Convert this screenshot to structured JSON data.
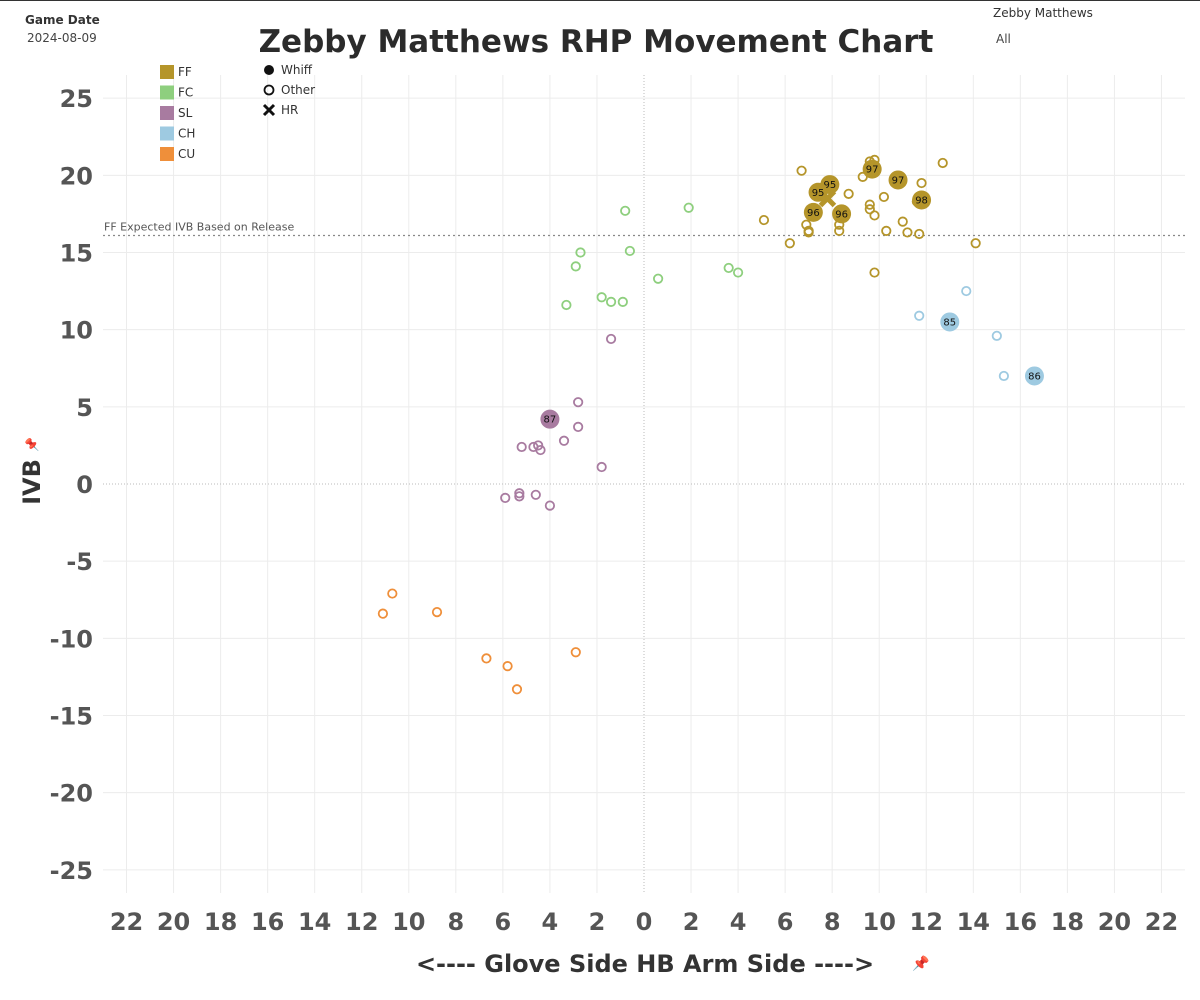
{
  "filters": {
    "game_date_label": "Game Date",
    "game_date_value": "2024-08-09",
    "pitcher_label": "Zebby Matthews",
    "pitcher_value": "All"
  },
  "colors": {
    "FF": "#b5952a",
    "FC": "#8ecf7e",
    "SL": "#a87ba0",
    "CH": "#9ecae1",
    "CU": "#ef8f3a"
  },
  "chart_data": {
    "type": "scatter",
    "title": "Zebby Matthews RHP Movement Chart",
    "xlabel": "<---- Glove Side        HB        Arm Side ---->",
    "ylabel": "IVB",
    "x_ticks": [
      "22",
      "20",
      "18",
      "16",
      "14",
      "12",
      "10",
      "8",
      "6",
      "4",
      "2",
      "0",
      "2",
      "4",
      "6",
      "8",
      "10",
      "12",
      "14",
      "16",
      "18",
      "20",
      "22"
    ],
    "x_tick_values": [
      -22,
      -20,
      -18,
      -16,
      -14,
      -12,
      -10,
      -8,
      -6,
      -4,
      -2,
      0,
      2,
      4,
      6,
      8,
      10,
      12,
      14,
      16,
      18,
      20,
      22
    ],
    "y_ticks": [
      "25",
      "20",
      "15",
      "10",
      "5",
      "0",
      "-5",
      "-10",
      "-15",
      "-20",
      "-25"
    ],
    "y_tick_values": [
      25,
      20,
      15,
      10,
      5,
      0,
      -5,
      -10,
      -15,
      -20,
      -25
    ],
    "xlim": [
      -23,
      23
    ],
    "ylim": [
      -26.5,
      26.5
    ],
    "grid": true,
    "reference_line": {
      "label": "FF Expected IVB Based on Release",
      "y": 16.1
    },
    "legend": {
      "pitch_types": [
        {
          "code": "FF",
          "label": "FF"
        },
        {
          "code": "FC",
          "label": "FC"
        },
        {
          "code": "SL",
          "label": "SL"
        },
        {
          "code": "CH",
          "label": "CH"
        },
        {
          "code": "CU",
          "label": "CU"
        }
      ],
      "outcomes": [
        {
          "kind": "whiff",
          "label": "Whiff"
        },
        {
          "kind": "other",
          "label": "Other"
        },
        {
          "kind": "hr",
          "label": "HR"
        }
      ]
    },
    "series": [
      {
        "name": "FF",
        "points": [
          {
            "x": 9.7,
            "y": 20.4,
            "o": "whiff",
            "label": "97"
          },
          {
            "x": 10.8,
            "y": 19.7,
            "o": "whiff",
            "label": "97"
          },
          {
            "x": 11.8,
            "y": 18.4,
            "o": "whiff",
            "label": "98"
          },
          {
            "x": 8.4,
            "y": 17.5,
            "o": "whiff",
            "label": "96"
          },
          {
            "x": 7.2,
            "y": 17.6,
            "o": "whiff",
            "label": "96"
          },
          {
            "x": 7.9,
            "y": 19.4,
            "o": "whiff",
            "label": "95"
          },
          {
            "x": 7.4,
            "y": 18.9,
            "o": "whiff",
            "label": "95"
          },
          {
            "x": 7.8,
            "y": 18.5,
            "o": "hr"
          },
          {
            "x": 6.7,
            "y": 20.3,
            "o": "other"
          },
          {
            "x": 9.6,
            "y": 20.9,
            "o": "other"
          },
          {
            "x": 9.8,
            "y": 21.0,
            "o": "other"
          },
          {
            "x": 12.7,
            "y": 20.8,
            "o": "other"
          },
          {
            "x": 9.3,
            "y": 19.9,
            "o": "other"
          },
          {
            "x": 11.8,
            "y": 19.5,
            "o": "other"
          },
          {
            "x": 8.7,
            "y": 18.8,
            "o": "other"
          },
          {
            "x": 10.2,
            "y": 18.6,
            "o": "other"
          },
          {
            "x": 9.6,
            "y": 18.1,
            "o": "other"
          },
          {
            "x": 9.6,
            "y": 17.8,
            "o": "other"
          },
          {
            "x": 11.6,
            "y": 18.3,
            "o": "other"
          },
          {
            "x": 9.8,
            "y": 17.4,
            "o": "other"
          },
          {
            "x": 5.1,
            "y": 17.1,
            "o": "other"
          },
          {
            "x": 6.9,
            "y": 16.8,
            "o": "other"
          },
          {
            "x": 8.3,
            "y": 16.8,
            "o": "other"
          },
          {
            "x": 7.0,
            "y": 16.4,
            "o": "other"
          },
          {
            "x": 7.0,
            "y": 16.3,
            "o": "other"
          },
          {
            "x": 8.3,
            "y": 16.4,
            "o": "other"
          },
          {
            "x": 11.0,
            "y": 17.0,
            "o": "other"
          },
          {
            "x": 10.3,
            "y": 16.4,
            "o": "other"
          },
          {
            "x": 11.2,
            "y": 16.3,
            "o": "other"
          },
          {
            "x": 11.7,
            "y": 16.2,
            "o": "other"
          },
          {
            "x": 6.2,
            "y": 15.6,
            "o": "other"
          },
          {
            "x": 14.1,
            "y": 15.6,
            "o": "other"
          },
          {
            "x": 9.8,
            "y": 13.7,
            "o": "other"
          }
        ]
      },
      {
        "name": "FC",
        "points": [
          {
            "x": -0.8,
            "y": 17.7,
            "o": "other"
          },
          {
            "x": 1.9,
            "y": 17.9,
            "o": "other"
          },
          {
            "x": -2.7,
            "y": 15.0,
            "o": "other"
          },
          {
            "x": -0.6,
            "y": 15.1,
            "o": "other"
          },
          {
            "x": -2.9,
            "y": 14.1,
            "o": "other"
          },
          {
            "x": 3.6,
            "y": 14.0,
            "o": "other"
          },
          {
            "x": 4.0,
            "y": 13.7,
            "o": "other"
          },
          {
            "x": 0.6,
            "y": 13.3,
            "o": "other"
          },
          {
            "x": -1.8,
            "y": 12.1,
            "o": "other"
          },
          {
            "x": -1.4,
            "y": 11.8,
            "o": "other"
          },
          {
            "x": -0.9,
            "y": 11.8,
            "o": "other"
          },
          {
            "x": -3.3,
            "y": 11.6,
            "o": "other"
          }
        ]
      },
      {
        "name": "SL",
        "points": [
          {
            "x": -1.4,
            "y": 9.4,
            "o": "other"
          },
          {
            "x": -2.8,
            "y": 5.3,
            "o": "other"
          },
          {
            "x": -4.0,
            "y": 4.2,
            "o": "whiff",
            "label": "87"
          },
          {
            "x": -2.8,
            "y": 3.7,
            "o": "other"
          },
          {
            "x": -3.4,
            "y": 2.8,
            "o": "other"
          },
          {
            "x": -5.2,
            "y": 2.4,
            "o": "other"
          },
          {
            "x": -4.7,
            "y": 2.4,
            "o": "other"
          },
          {
            "x": -4.5,
            "y": 2.5,
            "o": "other"
          },
          {
            "x": -4.4,
            "y": 2.2,
            "o": "other"
          },
          {
            "x": -1.8,
            "y": 1.1,
            "o": "other"
          },
          {
            "x": -5.9,
            "y": -0.9,
            "o": "other"
          },
          {
            "x": -5.3,
            "y": -0.6,
            "o": "other"
          },
          {
            "x": -5.3,
            "y": -0.8,
            "o": "other"
          },
          {
            "x": -4.6,
            "y": -0.7,
            "o": "other"
          },
          {
            "x": -4.0,
            "y": -1.4,
            "o": "other"
          }
        ]
      },
      {
        "name": "CH",
        "points": [
          {
            "x": 13.7,
            "y": 12.5,
            "o": "other"
          },
          {
            "x": 11.7,
            "y": 10.9,
            "o": "other"
          },
          {
            "x": 13.0,
            "y": 10.5,
            "o": "whiff",
            "label": "85"
          },
          {
            "x": 15.0,
            "y": 9.6,
            "o": "other"
          },
          {
            "x": 15.3,
            "y": 7.0,
            "o": "other"
          },
          {
            "x": 16.6,
            "y": 7.0,
            "o": "whiff",
            "label": "86"
          }
        ]
      },
      {
        "name": "CU",
        "points": [
          {
            "x": -10.7,
            "y": -7.1,
            "o": "other"
          },
          {
            "x": -11.1,
            "y": -8.4,
            "o": "other"
          },
          {
            "x": -8.8,
            "y": -8.3,
            "o": "other"
          },
          {
            "x": -2.9,
            "y": -10.9,
            "o": "other"
          },
          {
            "x": -6.7,
            "y": -11.3,
            "o": "other"
          },
          {
            "x": -5.8,
            "y": -11.8,
            "o": "other"
          },
          {
            "x": -5.4,
            "y": -13.3,
            "o": "other"
          }
        ]
      }
    ]
  }
}
